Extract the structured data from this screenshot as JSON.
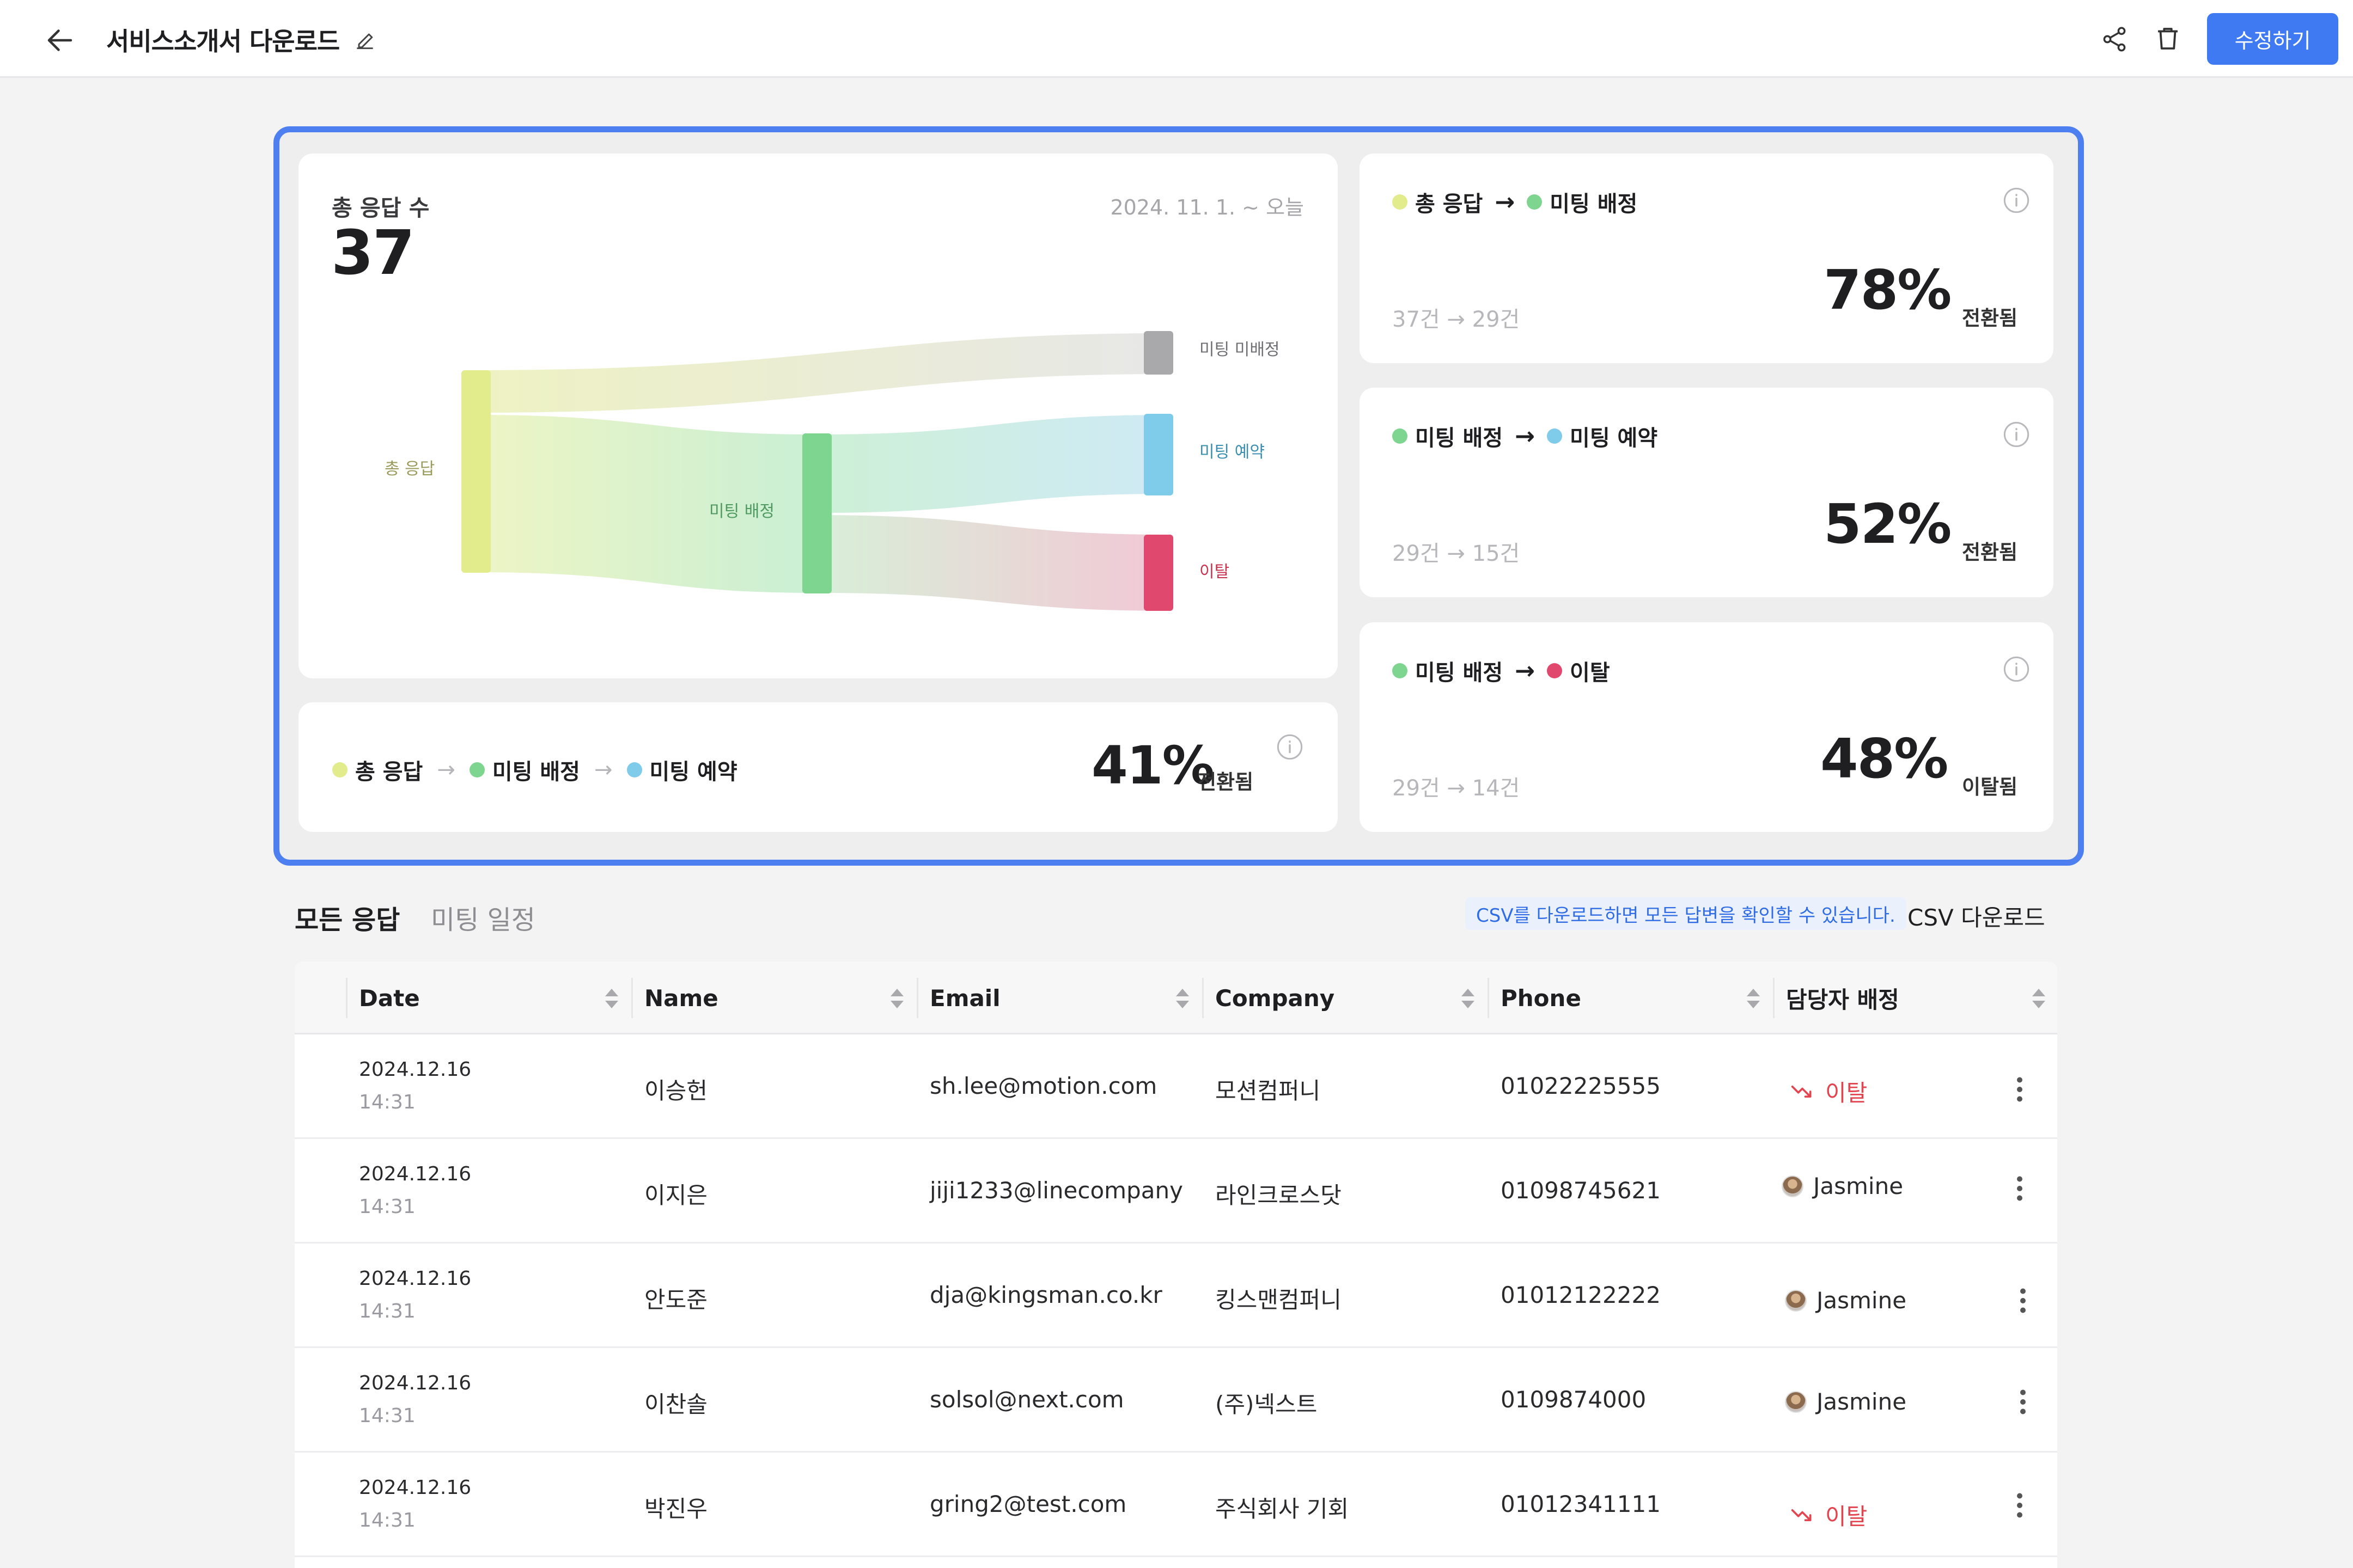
{
  "header": {
    "title": "서비스소개서 다운로드",
    "edit_button": "수정하기"
  },
  "sankey": {
    "label": "총 응답 수",
    "total": "37",
    "date_range": "2024. 11. 1. ~ 오늘",
    "nodes": {
      "total": "총 응답",
      "assigned": "미팅 배정",
      "unassigned": "미팅 미배정",
      "booked": "미팅 예약",
      "churn": "이탈"
    }
  },
  "overall": {
    "step1": "총 응답",
    "step2": "미팅 배정",
    "step3": "미팅 예약",
    "arrow": "→",
    "percent": "41%",
    "suffix": "전환됨"
  },
  "metrics": [
    {
      "from": "총 응답",
      "to": "미팅 배정",
      "arrow": "→",
      "counts": "37건 → 29건",
      "percent": "78%",
      "suffix": "전환됨"
    },
    {
      "from": "미팅 배정",
      "to": "미팅 예약",
      "arrow": "→",
      "counts": "29건 → 15건",
      "percent": "52%",
      "suffix": "전환됨"
    },
    {
      "from": "미팅 배정",
      "to": "이탈",
      "arrow": "→",
      "counts": "29건 → 14건",
      "percent": "48%",
      "suffix": "이탈됨"
    }
  ],
  "tabs": {
    "all": "모든 응답",
    "schedule": "미팅 일정"
  },
  "csv": {
    "hint": "CSV를 다운로드하면 모든 답변을 확인할 수 있습니다.",
    "download": "CSV 다운로드"
  },
  "table": {
    "columns": [
      "Date",
      "Name",
      "Email",
      "Company",
      "Phone",
      "담당자 배정"
    ],
    "rows": [
      {
        "date": "2024.12.16",
        "time": "14:31",
        "name": "이승헌",
        "email": "sh.lee@motion.com",
        "company": "모션컴퍼니",
        "phone": "01022225555",
        "assignee": "이탈"
      },
      {
        "date": "2024.12.16",
        "time": "14:31",
        "name": "이지은",
        "email": "jiji1233@linecompany",
        "company": "라인크로스닷",
        "phone": "01098745621",
        "assignee": "Jasmine"
      },
      {
        "date": "2024.12.16",
        "time": "14:31",
        "name": "안도준",
        "email": "dja@kingsman.co.kr",
        "company": "킹스맨컴퍼니",
        "phone": "01012122222",
        "assignee": "Jasmine"
      },
      {
        "date": "2024.12.16",
        "time": "14:31",
        "name": "이찬솔",
        "email": "solsol@next.com",
        "company": "(주)넥스트",
        "phone": "0109874000",
        "assignee": "Jasmine"
      },
      {
        "date": "2024.12.16",
        "time": "14:31",
        "name": "박진우",
        "email": "gring2@test.com",
        "company": "주식회사 기회",
        "phone": "01012341111",
        "assignee": "이탈"
      }
    ]
  },
  "colors": {
    "accent": "#3f7af2",
    "total": "#e3ec8c",
    "assigned": "#7ed58f",
    "unassigned": "#a9a9ab",
    "booked": "#7ecbea",
    "churn": "#e0486d"
  }
}
